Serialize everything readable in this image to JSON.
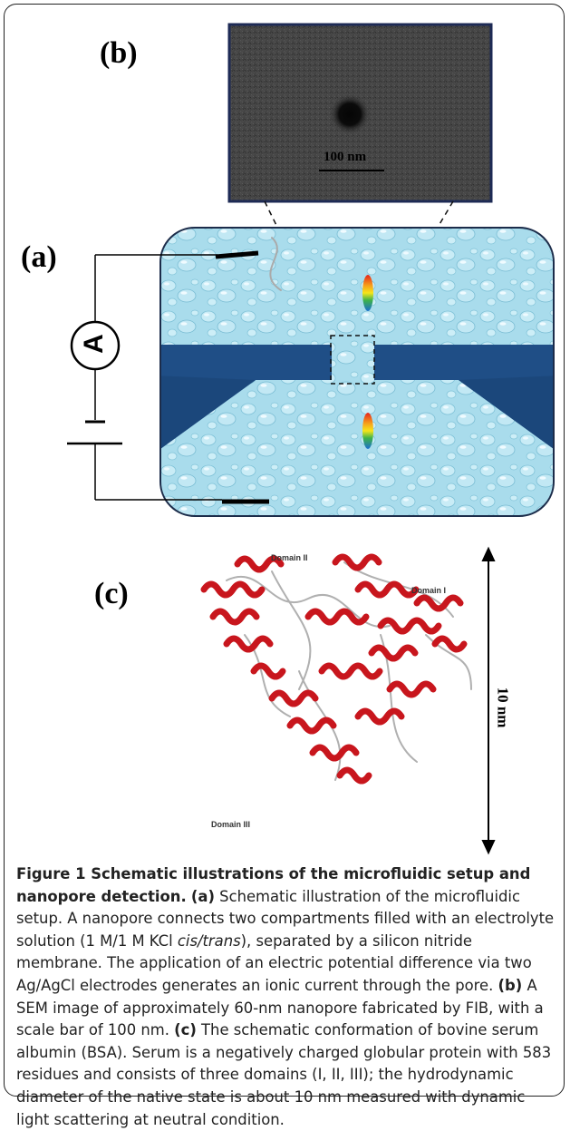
{
  "panels": {
    "a_label": "(a)",
    "b_label": "(b)",
    "c_label": "(c)"
  },
  "sem": {
    "scale_label": "100 nm"
  },
  "circuit": {
    "ammeter_label": "A"
  },
  "protein": {
    "domain_1": "Domain I",
    "domain_2": "Domain II",
    "domain_3": "Domain III",
    "size_label": "10 nm"
  },
  "colors": {
    "membrane": "#1f4e86",
    "fluid": "#aee0ef",
    "helix": "#c8161d"
  },
  "caption": {
    "title": "Figure 1 Schematic illustrations of the microfluidic setup and nanopore detection.",
    "a_tag": "(a)",
    "a_text_1": " Schematic illustration of the microfluidic setup. A nanopore connects two compartments filled with an electrolyte solution (1 M/1 M KCl ",
    "a_italic": "cis/trans",
    "a_text_2": "), separated by a silicon nitride membrane. The application of an electric potential difference via two Ag/AgCl electrodes generates an ionic current through the pore. ",
    "b_tag": "(b)",
    "b_text": " A SEM image of approximately 60-nm nanopore fabricated by FIB, with a scale bar of 100 nm. ",
    "c_tag": "(c)",
    "c_text": " The schematic conformation of bovine serum albumin (BSA). Serum is a negatively charged globular protein with 583 residues and consists of three domains (I, II, III); the hydrodynamic diameter of the native state is about 10 nm measured with dynamic light scattering at neutral condition."
  }
}
